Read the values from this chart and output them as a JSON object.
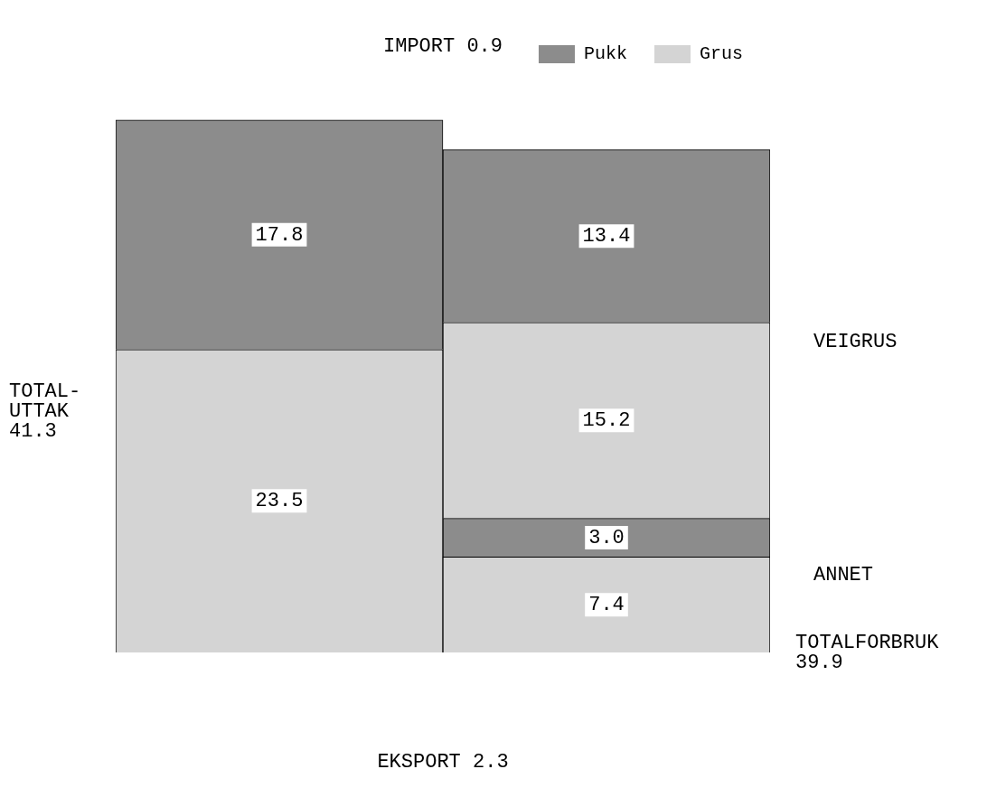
{
  "chart_data": {
    "type": "bar",
    "stacked": true,
    "tick_labels": false,
    "legend": "top right",
    "categories": [
      null,
      null
    ],
    "series": [
      {
        "name": "Grus",
        "color": "#d4d4d4",
        "values": [
          23.5,
          7.4
        ],
        "value_labels": [
          "23.5",
          "7.4"
        ]
      },
      {
        "color": "#8c8c8c",
        "values": [
          null,
          3.0
        ],
        "value_labels": [
          null,
          "3.0"
        ]
      },
      {
        "color": "#d4d4d4",
        "values": [
          null,
          15.2
        ],
        "value_labels": [
          null,
          "15.2"
        ]
      },
      {
        "name": "Pukk",
        "color": "#8c8c8c",
        "values": [
          17.8,
          13.4
        ],
        "value_labels": [
          "17.8",
          "13.4"
        ]
      }
    ],
    "annotations": [
      "IMPORT 0.9",
      "EKSPORT 2.3",
      "TOTAL-\nUTTAK\n41.3",
      "VEIGRUS",
      "ANNET",
      "TOTALFORBRUK\n39.9"
    ]
  }
}
